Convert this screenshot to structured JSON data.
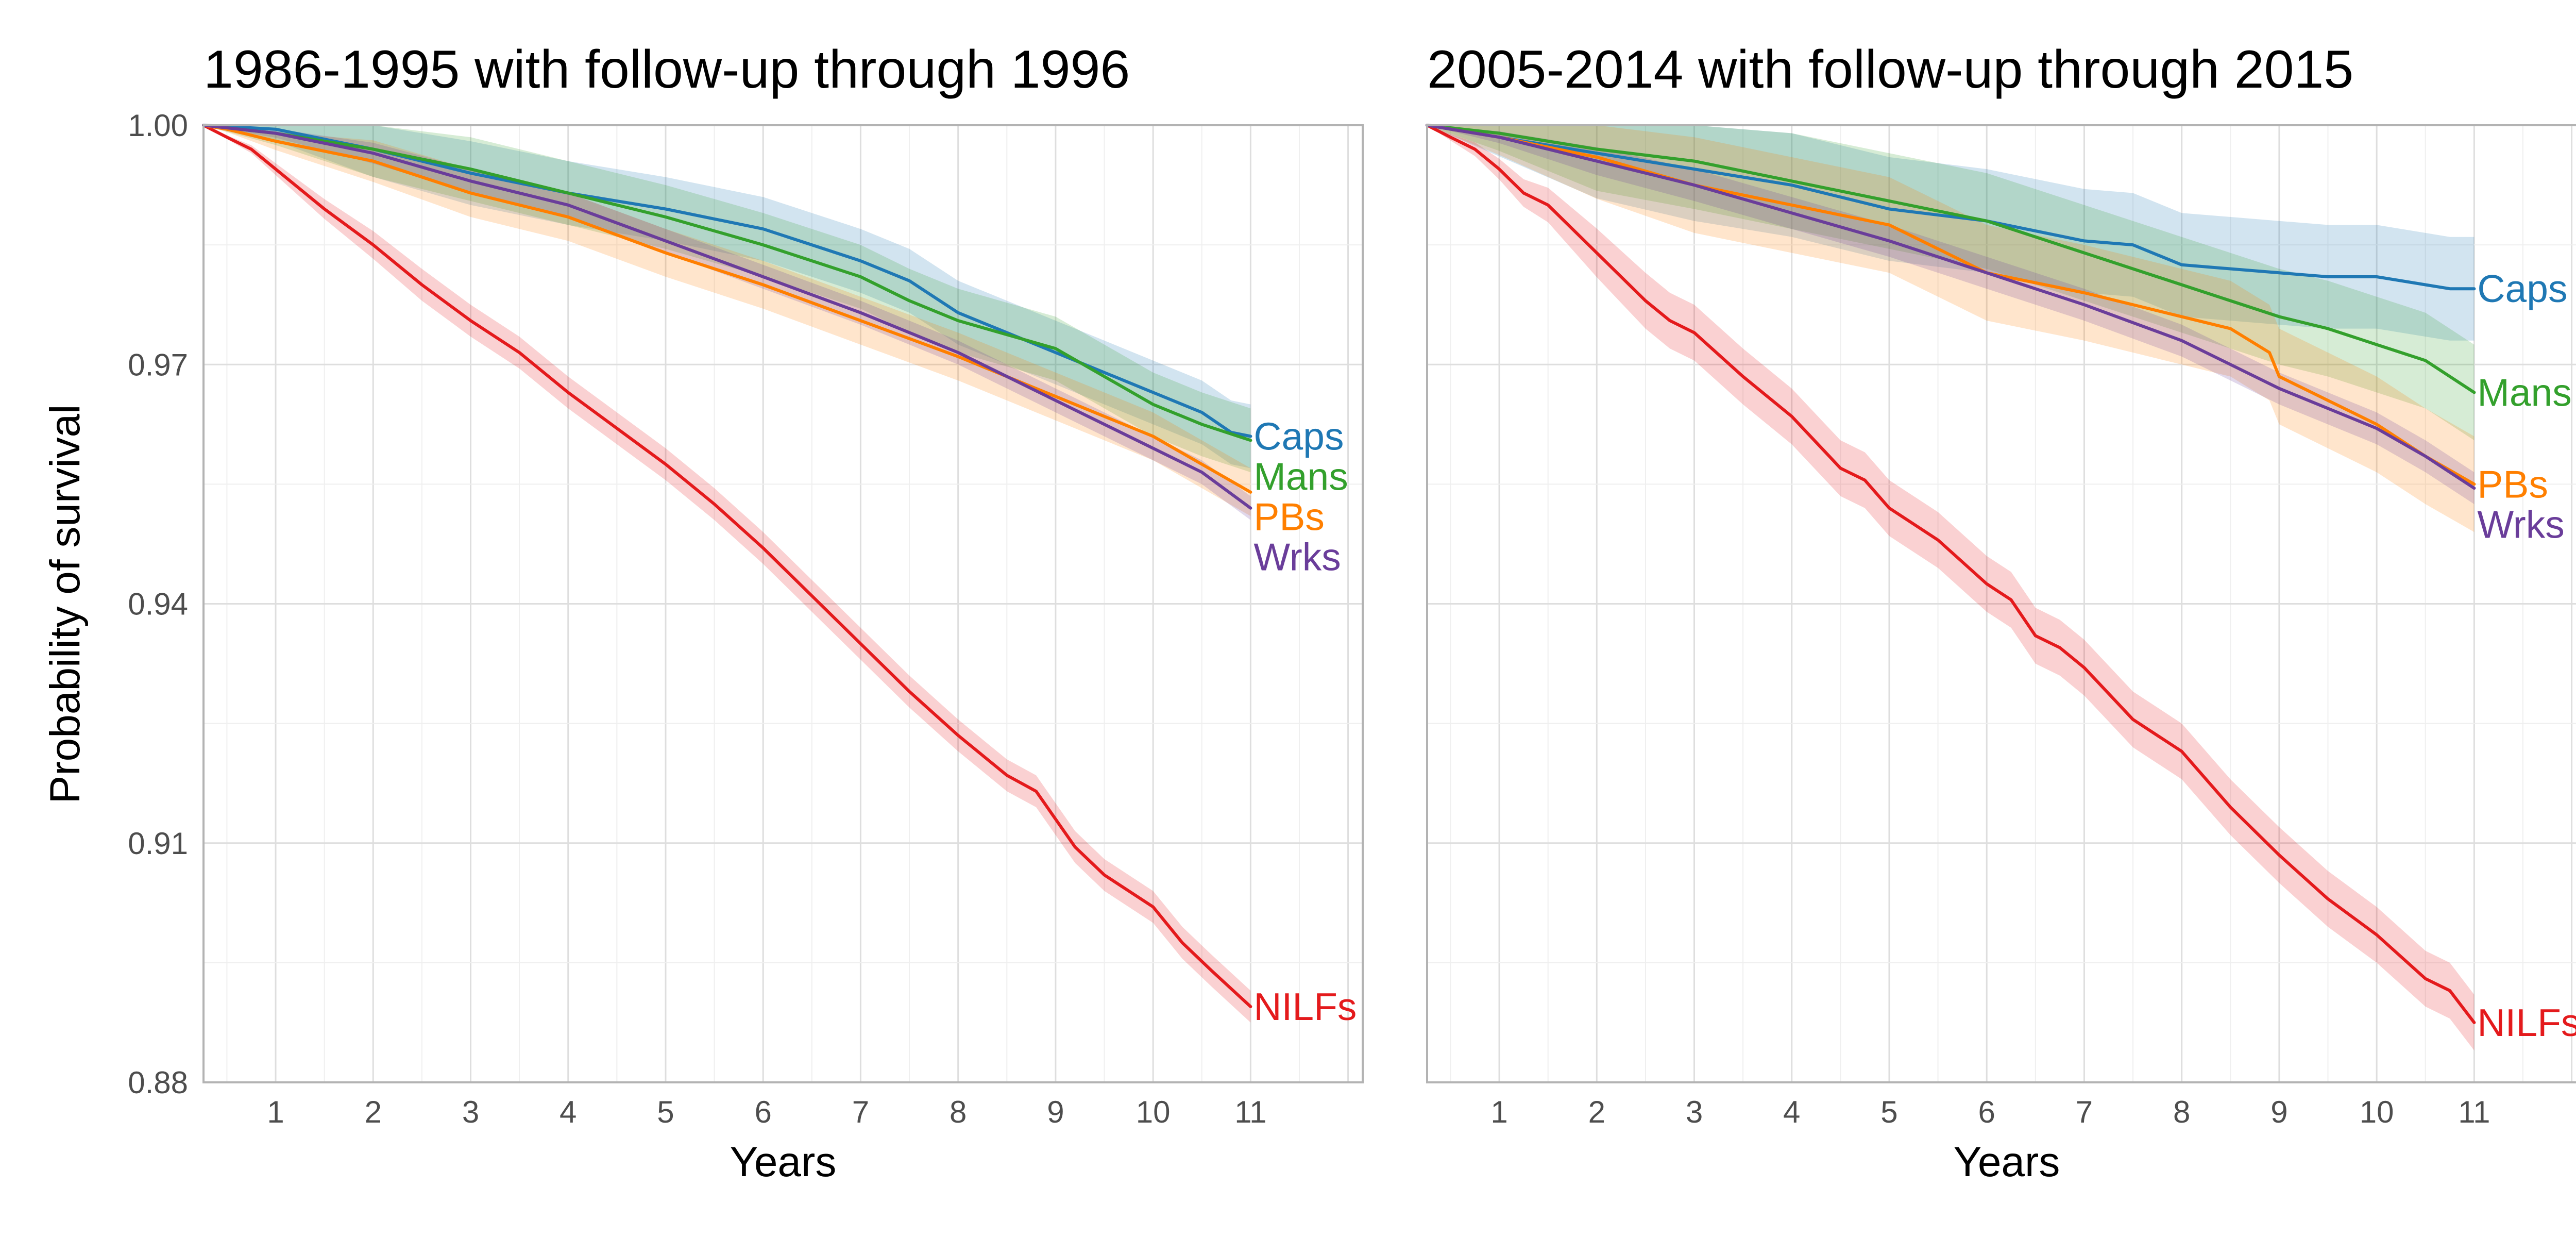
{
  "chart_data": {
    "type": "line",
    "layout": "two-panel facet, shared y axis",
    "ylabel": "Probability of survival",
    "ylim": [
      0.88,
      1.0
    ],
    "yticks": [
      "1.00",
      "0.97",
      "0.94",
      "0.91",
      "0.88"
    ],
    "xlabel": "Years",
    "xlim": [
      0.26,
      12.15
    ],
    "xticks": [
      "1",
      "2",
      "3",
      "4",
      "5",
      "6",
      "7",
      "8",
      "9",
      "10",
      "11"
    ],
    "grid": true,
    "legend": "direct labels at line ends",
    "confidence_bands": true,
    "colors": {
      "NILFs": "#e41a1c",
      "Caps": "#1f78b4",
      "Mans": "#33a02c",
      "PBs": "#ff7f00",
      "Wrks": "#6a3d9a"
    },
    "panels": [
      {
        "title": "1986-1995 with follow-up through 1996",
        "series": [
          {
            "name": "NILFs",
            "points": [
              [
                0.26,
                1.0
              ],
              [
                0.5,
                0.9985
              ],
              [
                0.75,
                0.997
              ],
              [
                1,
                0.9945
              ],
              [
                1.5,
                0.9895
              ],
              [
                2,
                0.985
              ],
              [
                2.5,
                0.98
              ],
              [
                3,
                0.9755
              ],
              [
                3.5,
                0.9715
              ],
              [
                4,
                0.9665
              ],
              [
                4.5,
                0.962
              ],
              [
                5,
                0.9575
              ],
              [
                5.5,
                0.9525
              ],
              [
                6,
                0.947
              ],
              [
                6.5,
                0.941
              ],
              [
                7,
                0.935
              ],
              [
                7.5,
                0.929
              ],
              [
                8,
                0.9235
              ],
              [
                8.5,
                0.9185
              ],
              [
                8.8,
                0.9165
              ],
              [
                9,
                0.913
              ],
              [
                9.2,
                0.9095
              ],
              [
                9.5,
                0.906
              ],
              [
                10,
                0.902
              ],
              [
                10.3,
                0.8975
              ],
              [
                10.6,
                0.894
              ],
              [
                11,
                0.8895
              ]
            ],
            "band_halfwidth": 0.002,
            "label": "NILFs"
          },
          {
            "name": "Caps",
            "points": [
              [
                0.26,
                1.0
              ],
              [
                1,
                0.9995
              ],
              [
                2,
                0.997
              ],
              [
                3,
                0.994
              ],
              [
                4,
                0.9915
              ],
              [
                5,
                0.9895
              ],
              [
                6,
                0.987
              ],
              [
                6.5,
                0.985
              ],
              [
                7,
                0.983
              ],
              [
                7.5,
                0.9805
              ],
              [
                8,
                0.9765
              ],
              [
                9,
                0.9715
              ],
              [
                10,
                0.9665
              ],
              [
                10.5,
                0.964
              ],
              [
                10.8,
                0.9615
              ],
              [
                11,
                0.961
              ]
            ],
            "band_halfwidth": 0.004,
            "label": "Caps"
          },
          {
            "name": "Mans",
            "points": [
              [
                0.26,
                1.0
              ],
              [
                1,
                0.999
              ],
              [
                2,
                0.997
              ],
              [
                3,
                0.9945
              ],
              [
                4,
                0.9915
              ],
              [
                5,
                0.9885
              ],
              [
                6,
                0.985
              ],
              [
                7,
                0.981
              ],
              [
                7.5,
                0.978
              ],
              [
                8,
                0.9755
              ],
              [
                9,
                0.972
              ],
              [
                10,
                0.965
              ],
              [
                10.5,
                0.9625
              ],
              [
                11,
                0.9605
              ]
            ],
            "band_halfwidth": 0.004,
            "label": "Mans"
          },
          {
            "name": "PBs",
            "points": [
              [
                0.26,
                1.0
              ],
              [
                0.5,
                0.9995
              ],
              [
                1,
                0.998
              ],
              [
                2,
                0.9955
              ],
              [
                3,
                0.9915
              ],
              [
                4,
                0.9885
              ],
              [
                5,
                0.984
              ],
              [
                6,
                0.98
              ],
              [
                7,
                0.9755
              ],
              [
                8,
                0.971
              ],
              [
                9,
                0.966
              ],
              [
                10,
                0.961
              ],
              [
                10.5,
                0.9575
              ],
              [
                11,
                0.954
              ]
            ],
            "band_halfwidth": 0.003,
            "label": "PBs"
          },
          {
            "name": "Wrks",
            "points": [
              [
                0.26,
                1.0
              ],
              [
                1,
                0.999
              ],
              [
                2,
                0.9965
              ],
              [
                3,
                0.993
              ],
              [
                4,
                0.99
              ],
              [
                5,
                0.9855
              ],
              [
                6,
                0.981
              ],
              [
                7,
                0.9765
              ],
              [
                8,
                0.9715
              ],
              [
                9,
                0.9655
              ],
              [
                10,
                0.9595
              ],
              [
                10.5,
                0.9565
              ],
              [
                11,
                0.952
              ]
            ],
            "band_halfwidth": 0.0015,
            "label": "Wrks"
          }
        ]
      },
      {
        "title": "2005-2014 with follow-up through 2015",
        "series": [
          {
            "name": "NILFs",
            "points": [
              [
                0.26,
                1.0
              ],
              [
                0.5,
                0.9985
              ],
              [
                0.75,
                0.997
              ],
              [
                1,
                0.9945
              ],
              [
                1.25,
                0.9915
              ],
              [
                1.5,
                0.99
              ],
              [
                2,
                0.984
              ],
              [
                2.5,
                0.978
              ],
              [
                2.75,
                0.9755
              ],
              [
                3,
                0.974
              ],
              [
                3.5,
                0.9685
              ],
              [
                4,
                0.9635
              ],
              [
                4.5,
                0.957
              ],
              [
                4.75,
                0.9555
              ],
              [
                5,
                0.952
              ],
              [
                5.5,
                0.948
              ],
              [
                6,
                0.9425
              ],
              [
                6.25,
                0.9405
              ],
              [
                6.5,
                0.936
              ],
              [
                6.75,
                0.9345
              ],
              [
                7,
                0.932
              ],
              [
                7.5,
                0.9255
              ],
              [
                8,
                0.9215
              ],
              [
                8.5,
                0.9145
              ],
              [
                9,
                0.9085
              ],
              [
                9.5,
                0.903
              ],
              [
                10,
                0.8985
              ],
              [
                10.5,
                0.893
              ],
              [
                10.75,
                0.8915
              ],
              [
                11,
                0.8875
              ]
            ],
            "band_halfwidth": 0.0035,
            "label": "NILFs"
          },
          {
            "name": "Caps",
            "points": [
              [
                0.26,
                1.0
              ],
              [
                1,
                0.9985
              ],
              [
                2,
                0.9965
              ],
              [
                3,
                0.9945
              ],
              [
                4,
                0.9925
              ],
              [
                5,
                0.9895
              ],
              [
                6,
                0.988
              ],
              [
                7,
                0.9855
              ],
              [
                7.5,
                0.985
              ],
              [
                8,
                0.9825
              ],
              [
                9,
                0.9815
              ],
              [
                9.5,
                0.981
              ],
              [
                10,
                0.981
              ],
              [
                10.5,
                0.98
              ],
              [
                10.75,
                0.9795
              ],
              [
                11,
                0.9795
              ]
            ],
            "band_halfwidth": 0.0065,
            "label": "Caps"
          },
          {
            "name": "Mans",
            "points": [
              [
                0.26,
                1.0
              ],
              [
                1,
                0.999
              ],
              [
                2,
                0.997
              ],
              [
                3,
                0.9955
              ],
              [
                4,
                0.993
              ],
              [
                5,
                0.9905
              ],
              [
                6,
                0.988
              ],
              [
                7,
                0.984
              ],
              [
                8,
                0.98
              ],
              [
                8.5,
                0.978
              ],
              [
                9,
                0.976
              ],
              [
                9.5,
                0.9745
              ],
              [
                10,
                0.9725
              ],
              [
                10.5,
                0.9705
              ],
              [
                11,
                0.9665
              ]
            ],
            "band_halfwidth": 0.006,
            "label": "Mans"
          },
          {
            "name": "PBs",
            "points": [
              [
                0.26,
                1.0
              ],
              [
                1,
                0.9985
              ],
              [
                2,
                0.996
              ],
              [
                3,
                0.9925
              ],
              [
                4,
                0.99
              ],
              [
                5,
                0.9875
              ],
              [
                6,
                0.9815
              ],
              [
                7,
                0.979
              ],
              [
                8,
                0.976
              ],
              [
                8.5,
                0.9745
              ],
              [
                8.9,
                0.9715
              ],
              [
                9,
                0.9685
              ],
              [
                9.5,
                0.9655
              ],
              [
                10,
                0.9625
              ],
              [
                10.5,
                0.9585
              ],
              [
                11,
                0.955
              ]
            ],
            "band_halfwidth": 0.006,
            "label": "PBs"
          },
          {
            "name": "Wrks",
            "points": [
              [
                0.26,
                1.0
              ],
              [
                1,
                0.9985
              ],
              [
                2,
                0.9955
              ],
              [
                3,
                0.9925
              ],
              [
                4,
                0.989
              ],
              [
                5,
                0.9855
              ],
              [
                6,
                0.9815
              ],
              [
                7,
                0.9775
              ],
              [
                8,
                0.973
              ],
              [
                9,
                0.967
              ],
              [
                10,
                0.962
              ],
              [
                10.5,
                0.9585
              ],
              [
                11,
                0.9545
              ]
            ],
            "band_halfwidth": 0.002,
            "label": "Wrks"
          }
        ]
      }
    ]
  }
}
